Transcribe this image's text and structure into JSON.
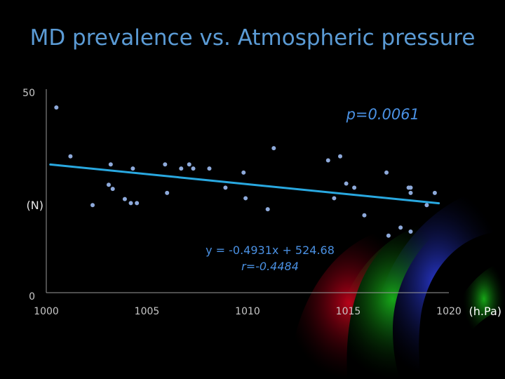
{
  "slide": {
    "title": "MD prevalence vs. Atmospheric pressure"
  },
  "colors": {
    "background": "#000000",
    "title": "#5b9bd5",
    "axis_text": "#c8c8c8",
    "point": "#8eaadb",
    "trendline": "#29a8e0",
    "annotation": "#4a90e2"
  },
  "chart_data": {
    "type": "scatter",
    "title": "",
    "xlabel": "(h.Pa)",
    "ylabel": "(N)",
    "xlim": [
      1000,
      1020
    ],
    "ylim": [
      0,
      50
    ],
    "x_ticks": [
      "1000",
      "1005",
      "1010",
      "1015",
      "1020"
    ],
    "y_ticks": [
      "0",
      "50"
    ],
    "grid": false,
    "legend": "none",
    "points": [
      {
        "x": 1000.5,
        "y": 45.5
      },
      {
        "x": 1001.2,
        "y": 33.5
      },
      {
        "x": 1002.3,
        "y": 21.5
      },
      {
        "x": 1003.2,
        "y": 31.5
      },
      {
        "x": 1003.1,
        "y": 26.5
      },
      {
        "x": 1003.3,
        "y": 25.5
      },
      {
        "x": 1003.9,
        "y": 23.0
      },
      {
        "x": 1004.2,
        "y": 22.0
      },
      {
        "x": 1004.3,
        "y": 30.5
      },
      {
        "x": 1004.5,
        "y": 22.0
      },
      {
        "x": 1005.9,
        "y": 31.5
      },
      {
        "x": 1006.0,
        "y": 24.5
      },
      {
        "x": 1006.7,
        "y": 30.5
      },
      {
        "x": 1007.1,
        "y": 31.5
      },
      {
        "x": 1007.3,
        "y": 30.5
      },
      {
        "x": 1008.1,
        "y": 30.5
      },
      {
        "x": 1008.9,
        "y": 25.8
      },
      {
        "x": 1009.8,
        "y": 29.5
      },
      {
        "x": 1009.9,
        "y": 23.2
      },
      {
        "x": 1011.0,
        "y": 20.5
      },
      {
        "x": 1011.3,
        "y": 35.5
      },
      {
        "x": 1014.0,
        "y": 32.5
      },
      {
        "x": 1014.3,
        "y": 23.2
      },
      {
        "x": 1014.6,
        "y": 33.5
      },
      {
        "x": 1014.9,
        "y": 26.8
      },
      {
        "x": 1015.3,
        "y": 25.8
      },
      {
        "x": 1015.8,
        "y": 19.0
      },
      {
        "x": 1016.9,
        "y": 29.5
      },
      {
        "x": 1017.0,
        "y": 14.0
      },
      {
        "x": 1017.6,
        "y": 16.0
      },
      {
        "x": 1018.0,
        "y": 25.8
      },
      {
        "x": 1018.1,
        "y": 25.8
      },
      {
        "x": 1018.1,
        "y": 24.5
      },
      {
        "x": 1018.1,
        "y": 15.0
      },
      {
        "x": 1018.9,
        "y": 21.5
      },
      {
        "x": 1019.3,
        "y": 24.5
      }
    ],
    "trendline": {
      "equation": "y = -0.4931x + 524.68",
      "slope": -0.4931,
      "intercept": 524.68,
      "x_range": [
        1000.2,
        1019.5
      ]
    },
    "annotations": {
      "p_value": "p=0.0061",
      "r_value": "r=-0.4484"
    }
  }
}
